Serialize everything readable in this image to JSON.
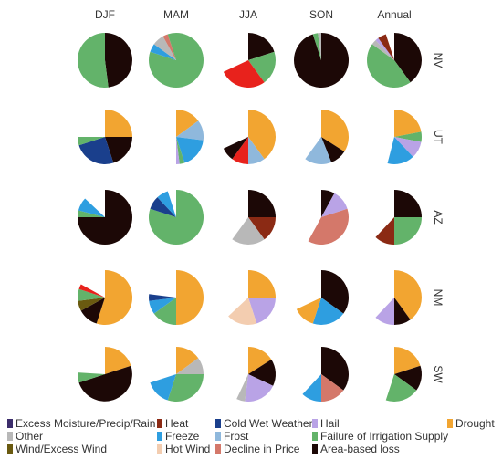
{
  "chart_data": {
    "type": "pie",
    "columns": [
      "DJF",
      "MAM",
      "JJA",
      "SON",
      "Annual"
    ],
    "rows": [
      "NV",
      "UT",
      "AZ",
      "NM",
      "SW"
    ],
    "legend": [
      {
        "key": "excess_moisture",
        "label": "Excess Moisture/Precip/Rain",
        "color": "#3c2d6b"
      },
      {
        "key": "heat",
        "label": "Heat",
        "color": "#8b2a14"
      },
      {
        "key": "cold_wet",
        "label": "Cold Wet Weather",
        "color": "#1a3f8c"
      },
      {
        "key": "hail",
        "label": "Hail",
        "color": "#b9a3e6"
      },
      {
        "key": "drought",
        "label": "Drought",
        "color": "#f2a531"
      },
      {
        "key": "other",
        "label": "Other",
        "color": "#b8b8b8"
      },
      {
        "key": "freeze",
        "label": "Freeze",
        "color": "#2e9ee0"
      },
      {
        "key": "frost",
        "label": "Frost",
        "color": "#8fb8dc"
      },
      {
        "key": "irrigation",
        "label": "Failure of Irrigation Supply",
        "color": "#63b36a"
      },
      {
        "key": "wind",
        "label": "Wind/Excess Wind",
        "color": "#6a5a10"
      },
      {
        "key": "hot_wind",
        "label": "Hot Wind",
        "color": "#f3cdb0"
      },
      {
        "key": "price",
        "label": "Decline in Price",
        "color": "#d4786a"
      },
      {
        "key": "area",
        "label": "Area-based loss",
        "color": "#1c0806"
      },
      {
        "key": "heat_red",
        "label": "",
        "color": "#e8221c"
      }
    ],
    "cells": [
      [
        {
          "max": 1.0,
          "slices": [
            {
              "k": "area",
              "v": 0.48
            },
            {
              "k": "irrigation",
              "v": 0.52
            }
          ]
        },
        {
          "max": 1.0,
          "slices": [
            {
              "k": "irrigation",
              "v": 0.8
            },
            {
              "k": "freeze",
              "v": 0.05
            },
            {
              "k": "other",
              "v": 0.07
            },
            {
              "k": "price",
              "v": 0.03
            },
            {
              "k": "irrigation",
              "v": 0.05
            }
          ]
        },
        {
          "max": 1.0,
          "slices": [
            {
              "k": "area",
              "v": 0.2
            },
            {
              "k": "irrigation",
              "v": 0.2
            },
            {
              "k": "heat_red",
              "v": 0.28
            }
          ]
        },
        {
          "max": 1.0,
          "slices": [
            {
              "k": "area",
              "v": 0.95
            },
            {
              "k": "irrigation",
              "v": 0.03
            },
            {
              "k": "other",
              "v": 0.02
            }
          ]
        },
        {
          "max": 1.0,
          "slices": [
            {
              "k": "area",
              "v": 0.4
            },
            {
              "k": "irrigation",
              "v": 0.45
            },
            {
              "k": "other",
              "v": 0.03
            },
            {
              "k": "hail",
              "v": 0.02
            },
            {
              "k": "heat",
              "v": 0.05
            }
          ]
        }
      ],
      [
        {
          "max": 0.95,
          "slices": [
            {
              "k": "drought",
              "v": 0.25
            },
            {
              "k": "area",
              "v": 0.2
            },
            {
              "k": "cold_wet",
              "v": 0.25
            },
            {
              "k": "irrigation",
              "v": 0.05
            }
          ]
        },
        {
          "max": 0.78,
          "slices": [
            {
              "k": "drought",
              "v": 0.15
            },
            {
              "k": "frost",
              "v": 0.12
            },
            {
              "k": "freeze",
              "v": 0.18
            },
            {
              "k": "irrigation",
              "v": 0.03
            },
            {
              "k": "hail",
              "v": 0.02
            }
          ]
        },
        {
          "max": 0.92,
          "slices": [
            {
              "k": "drought",
              "v": 0.4
            },
            {
              "k": "frost",
              "v": 0.1
            },
            {
              "k": "heat_red",
              "v": 0.1
            },
            {
              "k": "area",
              "v": 0.08
            }
          ]
        },
        {
          "max": 0.88,
          "slices": [
            {
              "k": "drought",
              "v": 0.34
            },
            {
              "k": "area",
              "v": 0.1
            },
            {
              "k": "frost",
              "v": 0.16
            }
          ]
        },
        {
          "max": 0.82,
          "slices": [
            {
              "k": "drought",
              "v": 0.22
            },
            {
              "k": "irrigation",
              "v": 0.06
            },
            {
              "k": "hail",
              "v": 0.1
            },
            {
              "k": "freeze",
              "v": 0.16
            }
          ]
        }
      ],
      [
        {
          "max": 1.0,
          "slices": [
            {
              "k": "area",
              "v": 0.75
            },
            {
              "k": "irrigation",
              "v": 0.04
            },
            {
              "k": "freeze",
              "v": 0.08
            }
          ]
        },
        {
          "max": 0.95,
          "slices": [
            {
              "k": "irrigation",
              "v": 0.8
            },
            {
              "k": "cold_wet",
              "v": 0.08
            },
            {
              "k": "freeze",
              "v": 0.07
            }
          ]
        },
        {
          "max": 0.92,
          "slices": [
            {
              "k": "area",
              "v": 0.25
            },
            {
              "k": "heat",
              "v": 0.15
            },
            {
              "k": "other",
              "v": 0.2
            }
          ]
        },
        {
          "max": 1.0,
          "slices": [
            {
              "k": "area",
              "v": 0.08
            },
            {
              "k": "hail",
              "v": 0.12
            },
            {
              "k": "price",
              "v": 0.38
            }
          ]
        },
        {
          "max": 0.85,
          "slices": [
            {
              "k": "area",
              "v": 0.25
            },
            {
              "k": "irrigation",
              "v": 0.25
            },
            {
              "k": "heat",
              "v": 0.12
            }
          ]
        }
      ],
      [
        {
          "max": 0.95,
          "slices": [
            {
              "k": "drought",
              "v": 0.55
            },
            {
              "k": "area",
              "v": 0.12
            },
            {
              "k": "wind",
              "v": 0.06
            },
            {
              "k": "irrigation",
              "v": 0.07
            },
            {
              "k": "heat_red",
              "v": 0.03
            }
          ]
        },
        {
          "max": 0.88,
          "slices": [
            {
              "k": "drought",
              "v": 0.5
            },
            {
              "k": "irrigation",
              "v": 0.15
            },
            {
              "k": "freeze",
              "v": 0.08
            },
            {
              "k": "cold_wet",
              "v": 0.04
            }
          ]
        },
        {
          "max": 0.92,
          "slices": [
            {
              "k": "drought",
              "v": 0.25
            },
            {
              "k": "hail",
              "v": 0.2
            },
            {
              "k": "hot_wind",
              "v": 0.18
            }
          ]
        },
        {
          "max": 0.95,
          "slices": [
            {
              "k": "area",
              "v": 0.35
            },
            {
              "k": "freeze",
              "v": 0.2
            },
            {
              "k": "drought",
              "v": 0.13
            }
          ]
        },
        {
          "max": 0.9,
          "slices": [
            {
              "k": "drought",
              "v": 0.4
            },
            {
              "k": "area",
              "v": 0.1
            },
            {
              "k": "hail",
              "v": 0.12
            }
          ]
        }
      ],
      [
        {
          "max": 1.0,
          "slices": [
            {
              "k": "drought",
              "v": 0.2
            },
            {
              "k": "area",
              "v": 0.5
            },
            {
              "k": "irrigation",
              "v": 0.06
            }
          ]
        },
        {
          "max": 0.95,
          "slices": [
            {
              "k": "drought",
              "v": 0.15
            },
            {
              "k": "other",
              "v": 0.1
            },
            {
              "k": "irrigation",
              "v": 0.3
            },
            {
              "k": "freeze",
              "v": 0.15
            }
          ]
        },
        {
          "max": 0.75,
          "slices": [
            {
              "k": "drought",
              "v": 0.16
            },
            {
              "k": "area",
              "v": 0.16
            },
            {
              "k": "hail",
              "v": 0.2
            },
            {
              "k": "other",
              "v": 0.05
            }
          ]
        },
        {
          "max": 0.92,
          "slices": [
            {
              "k": "area",
              "v": 0.35
            },
            {
              "k": "price",
              "v": 0.15
            },
            {
              "k": "freeze",
              "v": 0.12
            }
          ]
        },
        {
          "max": 0.82,
          "slices": [
            {
              "k": "drought",
              "v": 0.2
            },
            {
              "k": "area",
              "v": 0.15
            },
            {
              "k": "irrigation",
              "v": 0.2
            }
          ]
        }
      ]
    ]
  }
}
